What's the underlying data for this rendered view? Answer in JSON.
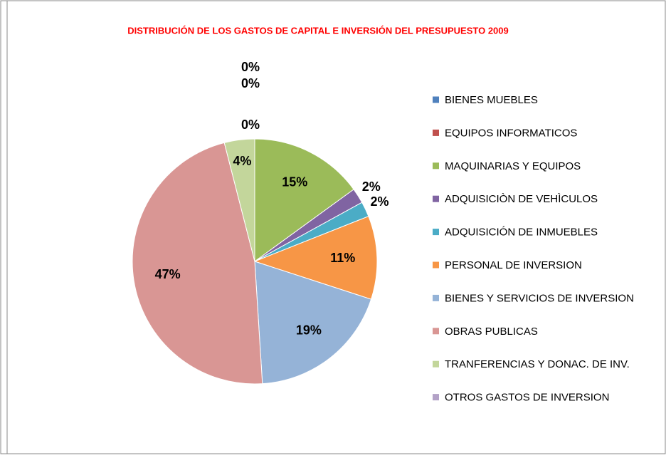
{
  "chart_data": {
    "type": "pie",
    "title": "DISTRIBUCIÓN DE LOS GASTOS DE CAPITAL E INVERSIÓN DEL PRESUPUESTO 2009",
    "categories": [
      "BIENES MUEBLES",
      "EQUIPOS INFORMATICOS",
      "MAQUINARIAS Y EQUIPOS",
      "ADQUISICIÒN DE VEHÌCULOS",
      "ADQUISICIÓN DE INMUEBLES",
      "PERSONAL DE INVERSION",
      "BIENES Y SERVICIOS DE INVERSION",
      "OBRAS PUBLICAS",
      "TRANFERENCIAS Y DONAC. DE INV.",
      "OTROS GASTOS DE INVERSION"
    ],
    "values": [
      0,
      0,
      15,
      2,
      2,
      11,
      19,
      47,
      4,
      0
    ],
    "value_labels": [
      "0%",
      "0%",
      "15%",
      "2%",
      "2%",
      "11%",
      "19%",
      "47%",
      "4%",
      "0%"
    ],
    "colors": [
      "#4f81bd",
      "#c0504d",
      "#9bbb59",
      "#8064a2",
      "#4bacc6",
      "#f79646",
      "#95b3d7",
      "#d99694",
      "#c3d69b",
      "#b3a2c7"
    ],
    "legend": "right"
  }
}
